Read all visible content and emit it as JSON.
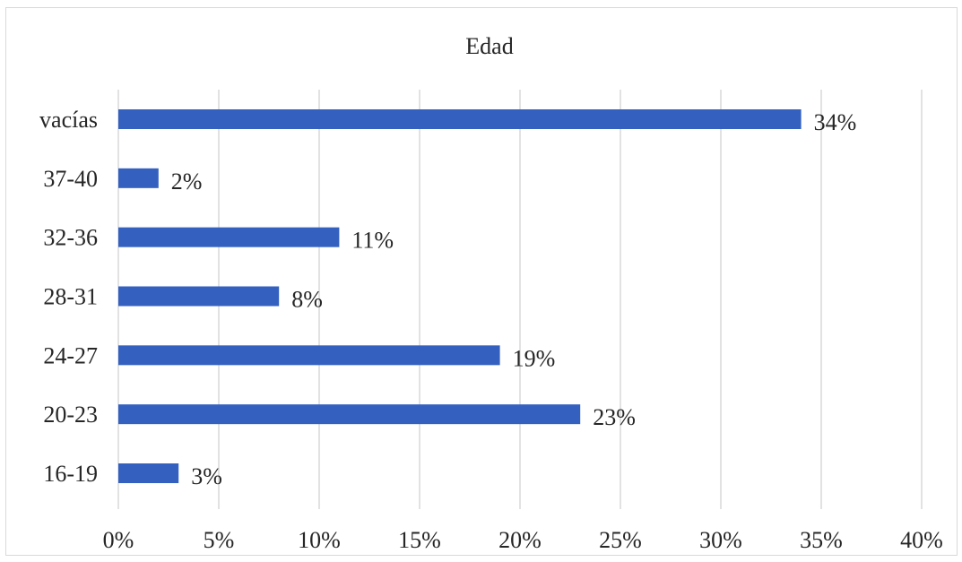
{
  "chart_data": {
    "type": "bar",
    "orientation": "horizontal",
    "title": "Edad",
    "xlabel": "",
    "ylabel": "",
    "categories": [
      "vacías",
      "37-40",
      "32-36",
      "28-31",
      "24-27",
      "20-23",
      "16-19"
    ],
    "values": [
      34,
      2,
      11,
      8,
      19,
      23,
      3
    ],
    "data_labels": [
      "34%",
      "2%",
      "11%",
      "8%",
      "19%",
      "23%",
      "3%"
    ],
    "xlim": [
      0,
      40
    ],
    "x_ticks": [
      0,
      5,
      10,
      15,
      20,
      25,
      30,
      35,
      40
    ],
    "x_tick_labels": [
      "0%",
      "5%",
      "10%",
      "15%",
      "20%",
      "25%",
      "30%",
      "35%",
      "40%"
    ],
    "grid": "vertical",
    "legend": "none",
    "colors": {
      "bar": "#3461C0",
      "grid": "#D9D9D9",
      "text": "#262626",
      "border": "#D9D9D9"
    }
  }
}
